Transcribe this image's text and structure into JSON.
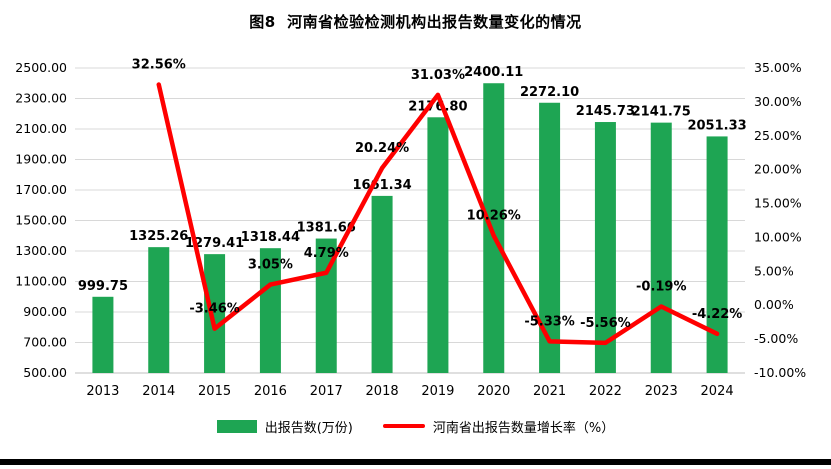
{
  "title": "图8  河南省检验检测机构出报告数量变化的情况",
  "legend": {
    "bars": "出报告数(万份)",
    "line": "河南省出报告数量增长率（%）"
  },
  "colors": {
    "bar": "#1EA553",
    "line": "#FF0000",
    "grid": "#D8D8D8",
    "axis": "#BFBFBF",
    "text": "#000000"
  },
  "chart_data": {
    "type": "bar+line",
    "title": "图8  河南省检验检测机构出报告数量变化的情况",
    "categories": [
      "2013",
      "2014",
      "2015",
      "2016",
      "2017",
      "2018",
      "2019",
      "2020",
      "2021",
      "2022",
      "2023",
      "2024"
    ],
    "series": [
      {
        "name": "出报告数(万份)",
        "type": "bar",
        "axis": "left",
        "values": [
          999.75,
          1325.26,
          1279.41,
          1318.44,
          1381.66,
          1661.34,
          2176.8,
          2400.11,
          2272.1,
          2145.73,
          2141.75,
          2051.33
        ]
      },
      {
        "name": "河南省出报告数量增长率（%）",
        "type": "line",
        "axis": "right",
        "values": [
          null,
          32.56,
          -3.46,
          3.05,
          4.79,
          20.24,
          31.03,
          10.26,
          -5.33,
          -5.56,
          -0.19,
          -4.22
        ]
      }
    ],
    "bar_labels": [
      "999.75",
      "1325.26",
      "1279.41",
      "1318.44",
      "1381.66",
      "1661.34",
      "2176.80",
      "2400.11",
      "2272.10",
      "2145.73",
      "2141.75",
      "2051.33"
    ],
    "line_labels": [
      null,
      "32.56%",
      "-3.46%",
      "3.05%",
      "4.79%",
      "20.24%",
      "31.03%",
      "10.26%",
      "-5.33%",
      "-5.56%",
      "-0.19%",
      "-4.22%"
    ],
    "left_axis": {
      "min": 500,
      "max": 2500,
      "step": 200
    },
    "right_axis": {
      "min": -10,
      "max": 35,
      "step": 5
    },
    "left_axis_ticks": [
      "2500.00",
      "2300.00",
      "2100.00",
      "1900.00",
      "1700.00",
      "1500.00",
      "1300.00",
      "1100.00",
      "900.00",
      "700.00",
      "500.00"
    ],
    "right_axis_ticks": [
      "35.00%",
      "30.00%",
      "25.00%",
      "20.00%",
      "15.00%",
      "10.00%",
      "5.00%",
      "0.00%",
      "-5.00%",
      "-10.00%"
    ],
    "grid": true,
    "legend_position": "bottom"
  }
}
